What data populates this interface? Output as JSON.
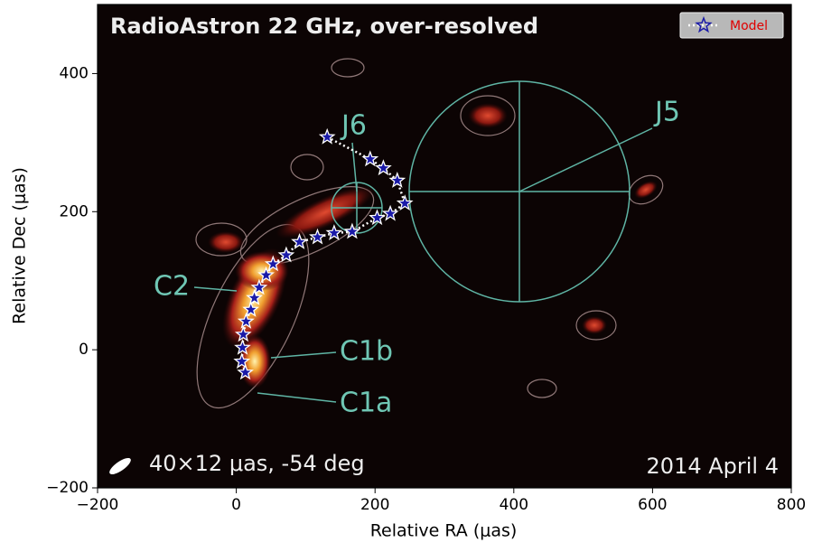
{
  "chart_data": {
    "type": "scatter",
    "title": "RadioAstron 22 GHz, over-resolved",
    "x_label": "Relative RA (μas)",
    "y_label": "Relative Dec (μas)",
    "xlim": [
      -200,
      800
    ],
    "ylim": [
      -200,
      500
    ],
    "xticks": [
      {
        "value": -200,
        "label": "−200"
      },
      0,
      200,
      400,
      600,
      800
    ],
    "yticks": [
      {
        "value": -200,
        "label": "−200"
      },
      0,
      200,
      400
    ],
    "legend": "upper right",
    "series": [
      {
        "name": "Model",
        "color": "#1a1aa8",
        "x": [
          131,
          193,
          212,
          232,
          243,
          222,
          203,
          167,
          141,
          117,
          91,
          72,
          53,
          43,
          33,
          26,
          21,
          14,
          10,
          9,
          8,
          13
        ],
        "values": [
          308,
          276,
          263,
          245,
          212,
          197,
          191,
          171,
          169,
          163,
          156,
          137,
          124,
          108,
          90,
          75,
          58,
          41,
          22,
          3,
          -17,
          -33
        ]
      }
    ],
    "annotations": [
      "J6",
      "J5",
      "C2",
      "C1b",
      "C1a",
      "40×12 μas, -54 deg",
      "2014 April 4"
    ]
  }
}
